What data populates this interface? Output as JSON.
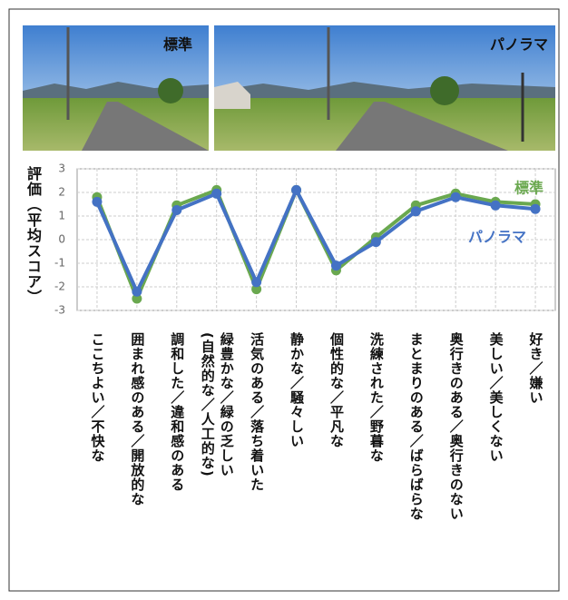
{
  "photos": [
    {
      "label": "標準"
    },
    {
      "label": "パノラマ"
    }
  ],
  "chart_data": {
    "type": "line",
    "y_label": "評価（平均スコア）",
    "categories": [
      "ここちよい／不快な",
      "囲まれ感のある／開放的な",
      "調和した／違和感のある",
      "緑豊かな／緑の乏しい\n(自然的な／人工的な)",
      "活気のある／落ち着いた",
      "静かな／騒々しい",
      "個性的な／平凡な",
      "洗練された／野暮な",
      "まとまりのある／ばらばらな",
      "奥行きのある／奥行きのない",
      "美しい／美しくない",
      "好き／嫌い"
    ],
    "series": [
      {
        "name": "標準",
        "color": "#6aa84f",
        "values": [
          1.8,
          -2.5,
          1.45,
          2.1,
          -2.1,
          2.1,
          -1.3,
          0.1,
          1.45,
          1.95,
          1.6,
          1.5
        ]
      },
      {
        "name": "パノラマ",
        "color": "#4472c4",
        "values": [
          1.6,
          -2.2,
          1.25,
          1.95,
          -1.8,
          2.1,
          -1.1,
          -0.1,
          1.2,
          1.8,
          1.45,
          1.3
        ]
      }
    ],
    "ylim": [
      -3,
      3
    ],
    "yticks": [
      -3,
      -2,
      -1,
      0,
      1,
      2,
      3
    ],
    "grid": true
  }
}
